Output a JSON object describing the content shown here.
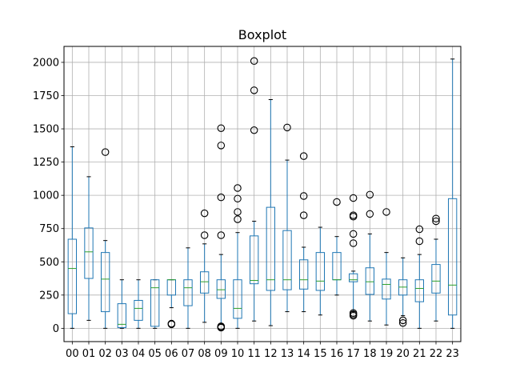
{
  "chart_data": {
    "type": "boxplot",
    "title": "Boxplot",
    "xlabel": "",
    "ylabel": "",
    "ylim": [
      -100,
      2120
    ],
    "yticks": [
      0,
      250,
      500,
      750,
      1000,
      1250,
      1500,
      1750,
      2000
    ],
    "grid": true,
    "legend": "none",
    "colors": {
      "box": "#1f77b4",
      "median": "#2ca02c",
      "grid": "#b0b0b0",
      "whisker": "#1f77b4",
      "cap": "#000000",
      "outlier": "#000000"
    },
    "categories": [
      "00",
      "01",
      "02",
      "03",
      "04",
      "05",
      "06",
      "07",
      "08",
      "09",
      "10",
      "11",
      "12",
      "13",
      "14",
      "15",
      "16",
      "17",
      "18",
      "19",
      "20",
      "21",
      "22",
      "23"
    ],
    "boxes": [
      {
        "whislo": 0,
        "q1": 110,
        "med": 450,
        "q3": 670,
        "whishi": 1365,
        "fliers": []
      },
      {
        "whislo": 60,
        "q1": 375,
        "med": 575,
        "q3": 755,
        "whishi": 1140,
        "fliers": []
      },
      {
        "whislo": 0,
        "q1": 125,
        "med": 370,
        "q3": 570,
        "whishi": 660,
        "fliers": [
          1325
        ]
      },
      {
        "whislo": 0,
        "q1": 5,
        "med": 30,
        "q3": 185,
        "whishi": 365,
        "fliers": []
      },
      {
        "whislo": 0,
        "q1": 60,
        "med": 150,
        "q3": 210,
        "whishi": 365,
        "fliers": []
      },
      {
        "whislo": 0,
        "q1": 15,
        "med": 305,
        "q3": 365,
        "whishi": 365,
        "fliers": []
      },
      {
        "whislo": 155,
        "q1": 250,
        "med": 365,
        "q3": 365,
        "whishi": 365,
        "fliers": [
          30,
          35
        ]
      },
      {
        "whislo": 0,
        "q1": 170,
        "med": 305,
        "q3": 365,
        "whishi": 605,
        "fliers": []
      },
      {
        "whislo": 45,
        "q1": 265,
        "med": 350,
        "q3": 425,
        "whishi": 635,
        "fliers": [
          700,
          865
        ]
      },
      {
        "whislo": 30,
        "q1": 225,
        "med": 290,
        "q3": 365,
        "whishi": 555,
        "fliers": [
          5,
          10,
          15,
          700,
          985,
          1375,
          1505
        ]
      },
      {
        "whislo": 0,
        "q1": 75,
        "med": 150,
        "q3": 365,
        "whishi": 720,
        "fliers": [
          820,
          875,
          975,
          1055
        ]
      },
      {
        "whislo": 55,
        "q1": 335,
        "med": 360,
        "q3": 695,
        "whishi": 805,
        "fliers": [
          1490,
          1790,
          2010
        ]
      },
      {
        "whislo": 20,
        "q1": 285,
        "med": 365,
        "q3": 910,
        "whishi": 1720,
        "fliers": []
      },
      {
        "whislo": 125,
        "q1": 290,
        "med": 365,
        "q3": 735,
        "whishi": 1265,
        "fliers": [
          1510
        ]
      },
      {
        "whislo": 125,
        "q1": 295,
        "med": 365,
        "q3": 515,
        "whishi": 610,
        "fliers": [
          850,
          995,
          1295
        ]
      },
      {
        "whislo": 100,
        "q1": 285,
        "med": 355,
        "q3": 570,
        "whishi": 760,
        "fliers": []
      },
      {
        "whislo": 250,
        "q1": 365,
        "med": 365,
        "q3": 570,
        "whishi": 690,
        "fliers": [
          950
        ]
      },
      {
        "whislo": 125,
        "q1": 350,
        "med": 365,
        "q3": 410,
        "whishi": 430,
        "fliers": [
          95,
          105,
          115,
          640,
          710,
          840,
          850,
          980
        ]
      },
      {
        "whislo": 55,
        "q1": 255,
        "med": 350,
        "q3": 455,
        "whishi": 710,
        "fliers": [
          860,
          1005
        ]
      },
      {
        "whislo": 25,
        "q1": 220,
        "med": 330,
        "q3": 370,
        "whishi": 570,
        "fliers": [
          875
        ]
      },
      {
        "whislo": 95,
        "q1": 250,
        "med": 310,
        "q3": 365,
        "whishi": 530,
        "fliers": [
          40,
          60
        ]
      },
      {
        "whislo": 0,
        "q1": 200,
        "med": 300,
        "q3": 365,
        "whishi": 555,
        "fliers": [
          655,
          745
        ]
      },
      {
        "whislo": 55,
        "q1": 265,
        "med": 355,
        "q3": 480,
        "whishi": 670,
        "fliers": [
          805,
          825
        ]
      },
      {
        "whislo": 0,
        "q1": 100,
        "med": 325,
        "q3": 975,
        "whishi": 2025,
        "fliers": []
      }
    ]
  }
}
